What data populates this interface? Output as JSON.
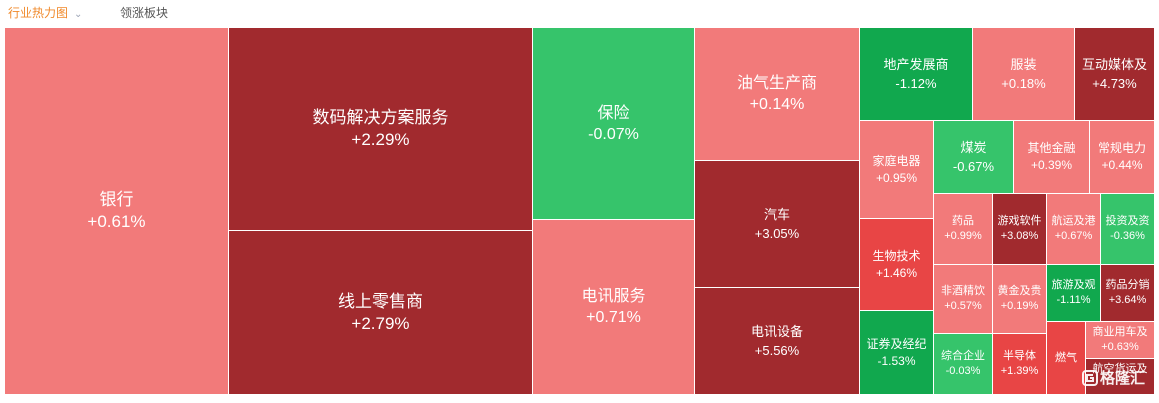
{
  "tabs": {
    "active": "行业热力图",
    "second": "领涨板块"
  },
  "cells": {
    "yinhang": {
      "name": "银行",
      "pct": "+0.61%"
    },
    "shuma": {
      "name": "数码解决方案服务",
      "pct": "+2.29%"
    },
    "xianshang": {
      "name": "线上零售商",
      "pct": "+2.79%"
    },
    "baoxian": {
      "name": "保险",
      "pct": "-0.07%"
    },
    "dianxunfuwu": {
      "name": "电讯服务",
      "pct": "+0.71%"
    },
    "youqi": {
      "name": "油气生产商",
      "pct": "+0.14%"
    },
    "qiche": {
      "name": "汽车",
      "pct": "+3.05%"
    },
    "dianxunshebei": {
      "name": "电讯设备",
      "pct": "+5.56%"
    },
    "dichan": {
      "name": "地产发展商",
      "pct": "-1.12%"
    },
    "fuzhuang": {
      "name": "服装",
      "pct": "+0.18%"
    },
    "hudong": {
      "name": "互动媒体及",
      "pct": "+4.73%"
    },
    "jiating": {
      "name": "家庭电器",
      "pct": "+0.95%"
    },
    "meitan": {
      "name": "煤炭",
      "pct": "-0.67%"
    },
    "qitajinrong": {
      "name": "其他金融",
      "pct": "+0.39%"
    },
    "changgui": {
      "name": "常规电力",
      "pct": "+0.44%"
    },
    "shengwu": {
      "name": "生物技术",
      "pct": "+1.46%"
    },
    "yaopin": {
      "name": "药品",
      "pct": "+0.99%"
    },
    "youxi": {
      "name": "游戏软件",
      "pct": "+3.08%"
    },
    "hangyun": {
      "name": "航运及港",
      "pct": "+0.67%"
    },
    "touzi": {
      "name": "投资及资",
      "pct": "-0.36%"
    },
    "feijiu": {
      "name": "非酒精饮",
      "pct": "+0.57%"
    },
    "huangjin": {
      "name": "黄金及贵",
      "pct": "+0.19%"
    },
    "lvyou": {
      "name": "旅游及观",
      "pct": "-1.11%"
    },
    "yaopinfenxiao": {
      "name": "药品分销",
      "pct": "+3.64%"
    },
    "zhengquan": {
      "name": "证券及经纪",
      "pct": "-1.53%"
    },
    "zonghe": {
      "name": "综合企业",
      "pct": "-0.03%"
    },
    "bandaoti": {
      "name": "半导体",
      "pct": "+1.39%"
    },
    "ranqi": {
      "name": "燃气"
    },
    "shangye": {
      "name": "商业用车及",
      "pct": "+0.63%"
    },
    "hangkong": {
      "name": "航空货运及"
    }
  },
  "watermark": {
    "text": "格隆汇"
  },
  "colors": {
    "tab_active": "#f08a2c",
    "up_light": "#f27a7a",
    "up": "#e84545",
    "up_strong": "#a12a2e",
    "down_light": "#36c46b",
    "down": "#11a84e"
  }
}
